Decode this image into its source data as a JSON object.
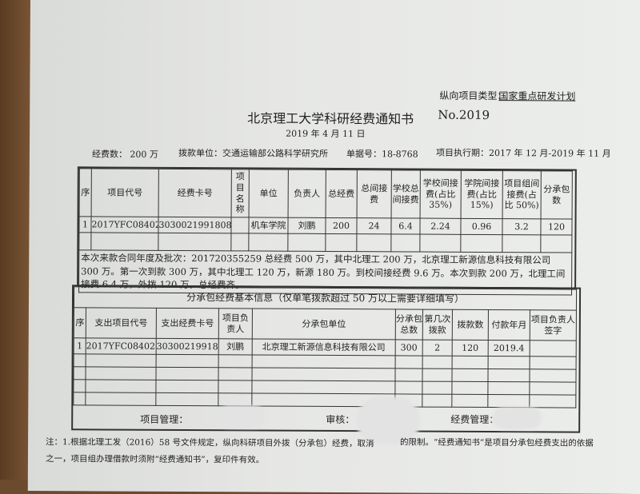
{
  "header": {
    "project_type_label": "纵向项目类型：",
    "project_type_value": "国家重点研发计划",
    "title": "北京理工大学科研经费通知书",
    "number": "No.2019",
    "date": "2019 年 4 月 11 日",
    "funds": "经费数：  200 万",
    "payer": "拨款单位：交通运输部公路科学研究所",
    "receipt": "单据号：18-8768",
    "period": "项目执行期：2017 年 12 月-2019 年 11 月"
  },
  "table1": {
    "headers": [
      "序",
      "项目代号",
      "经费卡号",
      "项目名称",
      "单位",
      "负责人",
      "总经费",
      "总间接费",
      "学校总间接费",
      "学校间接费(占比 35%)",
      "学院间接费(占比 15%)",
      "项目组间接费(占比 50%)",
      "分承包数"
    ],
    "rows": [
      [
        "1",
        "2017YFC0840205",
        "3030021991808",
        "",
        "机车学院",
        "刘鹏",
        "200",
        "24",
        "6.4",
        "2.24",
        "0.96",
        "3.2",
        "120"
      ]
    ],
    "remark": "本次来款合同年度及批次：201720355259 总经费 500 万，其中北理工 200 万，北京理工新源信息科技有限公司 300 万。第一次到款 300 万，其中北理工 120 万，新源 180 万。到校间接经费 9.6 万。本次到款 200 万，北理工间接费 6.4 万，外拨 120 万。总经费齐。"
  },
  "table2": {
    "title": "分承包经费基本信息（仅单笔拨款超过 50 万以上需要详细填写）",
    "headers": [
      "序",
      "支出项目代号",
      "支出经费卡号",
      "项目负责人",
      "分承包单位",
      "分承包总数",
      "第几次拨款",
      "拨款数",
      "付款年月",
      "项目负责人签字"
    ],
    "rows": [
      [
        "1",
        "2017YFC0840205",
        "3030021991808",
        "刘鹏",
        "北京理工新源信息科技有限公司",
        "300",
        "2",
        "120",
        "2019.4",
        ""
      ]
    ]
  },
  "signatures": {
    "project_mgmt": "项目管理：",
    "review": "审核：",
    "funds_mgmt": "经费管理："
  },
  "note": {
    "line1_a": "注：1.根据北理工发（2016）58 号文件规定，纵向科研项目外拨（分承包）经费，取消",
    "line1_b": "的限制。“经费通知书”是项目分承包经费支出的依据",
    "line2": "之一，项目组办理借款时须附“经费通知书”，复印件有效。"
  }
}
